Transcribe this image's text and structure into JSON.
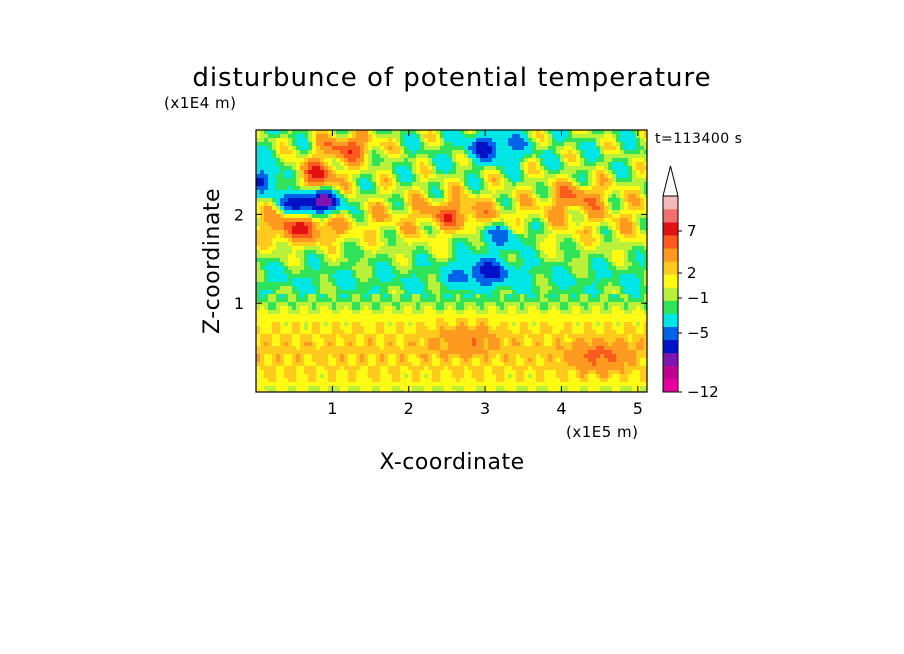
{
  "chart_data": {
    "type": "heatmap",
    "title": "disturbunce of potential temperature",
    "xlabel": "X-coordinate",
    "ylabel": "Z-coordinate",
    "x_unit": "(x1E5 m)",
    "y_unit": "(x1E4 m)",
    "time_label": "t=113400 s",
    "xlim": [
      0,
      5.12
    ],
    "ylim": [
      0,
      2.95
    ],
    "x_ticks": [
      "1",
      "2",
      "3",
      "4",
      "5"
    ],
    "y_ticks": [
      "1",
      "2"
    ],
    "colorbar": {
      "levels": [
        -12,
        -9,
        -7,
        -5,
        -3,
        -1,
        0,
        1,
        2,
        3,
        5,
        7,
        9,
        12
      ],
      "tick_labels": [
        "7",
        "2",
        "−1",
        "−5",
        "−12"
      ],
      "colors": [
        "#e6009e",
        "#c0008f",
        "#7c15b2",
        "#0012c8",
        "#0064e8",
        "#00e6e6",
        "#2fe35a",
        "#b8f03a",
        "#fffa14",
        "#ffc91e",
        "#ff9a21",
        "#ff5a1e",
        "#e21212",
        "#f06e6e",
        "#f6b9b9"
      ],
      "extend": "max"
    },
    "field_description_bands": [
      {
        "z": [
          0.0,
          0.12
        ],
        "value": 1
      },
      {
        "z": [
          0.12,
          0.85
        ],
        "value": 2.5
      },
      {
        "z": [
          0.85,
          1.05
        ],
        "value": 0.5
      },
      {
        "z": [
          1.05,
          1.45
        ],
        "value": -1
      },
      {
        "z": [
          1.45,
          1.75
        ],
        "value": 0.5
      },
      {
        "z": [
          1.75,
          2.2
        ],
        "value": 2
      },
      {
        "z": [
          2.2,
          2.95
        ],
        "value": 0
      }
    ],
    "features": [
      {
        "x": 0.75,
        "z": 2.13,
        "value": -10
      },
      {
        "x": 0.72,
        "z": 2.43,
        "value": 7
      },
      {
        "x": 1.2,
        "z": 2.75,
        "value": 6
      },
      {
        "x": 0.2,
        "z": 2.4,
        "value": -5
      },
      {
        "x": 0.6,
        "z": 1.85,
        "value": 6
      },
      {
        "x": 3.0,
        "z": 1.35,
        "value": -5
      },
      {
        "x": 2.75,
        "z": 0.6,
        "value": 3
      },
      {
        "x": 3.1,
        "z": 2.75,
        "value": -5
      },
      {
        "x": 2.6,
        "z": 2.0,
        "value": 4
      },
      {
        "x": 4.2,
        "z": 2.2,
        "value": 4
      },
      {
        "x": 3.2,
        "z": 1.75,
        "value": -4
      },
      {
        "x": 4.5,
        "z": 0.4,
        "value": 4
      }
    ]
  }
}
